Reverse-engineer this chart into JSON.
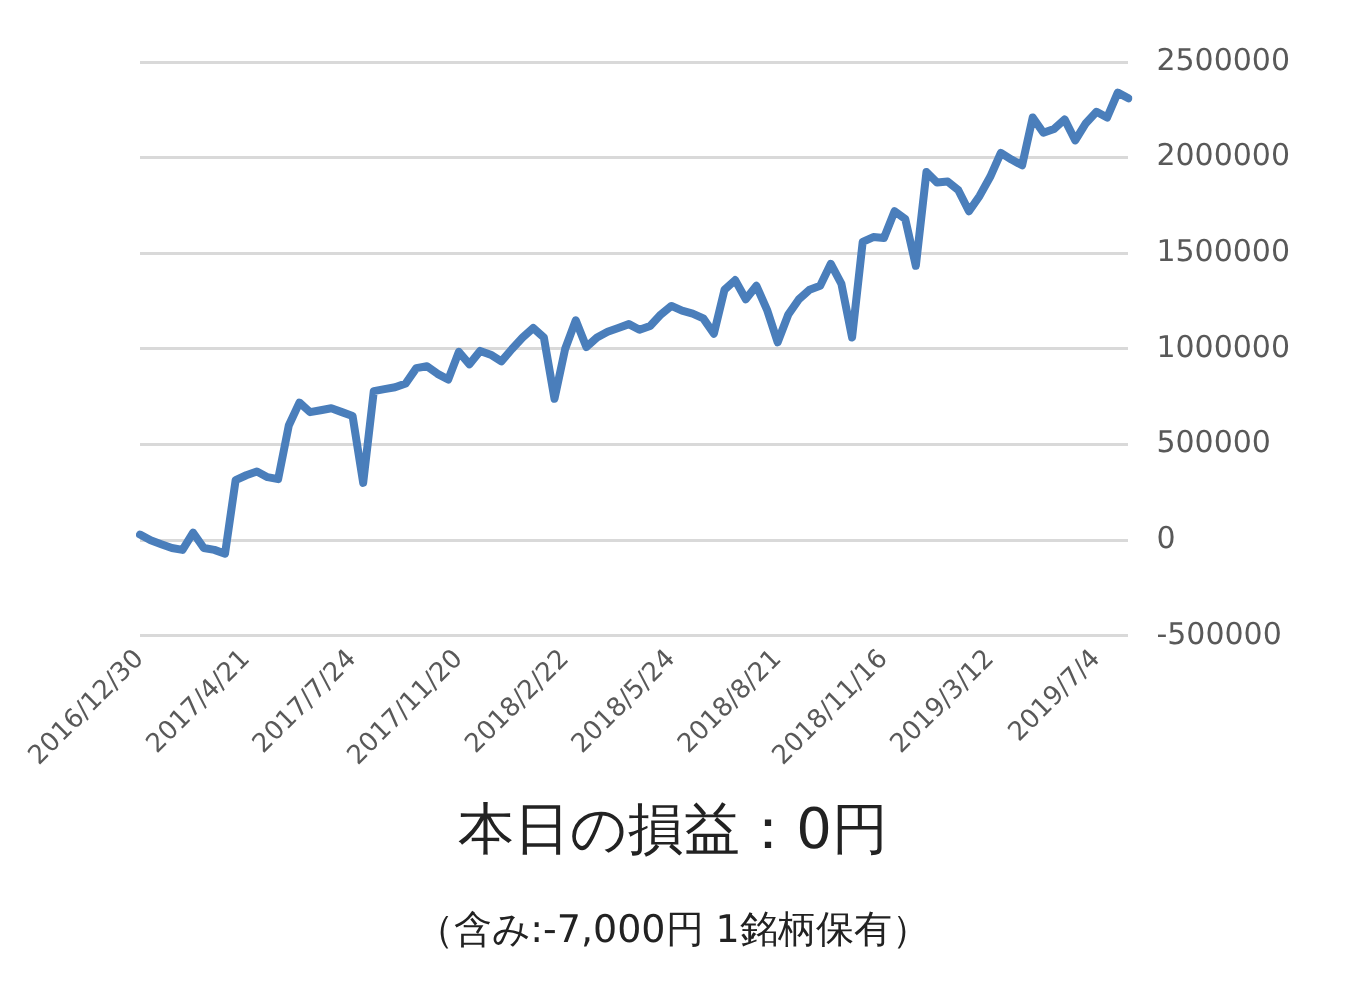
{
  "chart_data": {
    "type": "line",
    "title": "本日の損益：0円",
    "subtitle": "（含み:-7,000円  1銘柄保有）",
    "categories": [
      "2016/12/30",
      null,
      null,
      null,
      null,
      null,
      null,
      null,
      null,
      null,
      "2017/4/21",
      null,
      null,
      null,
      null,
      null,
      null,
      null,
      null,
      null,
      "2017/7/24",
      null,
      null,
      null,
      null,
      null,
      null,
      null,
      null,
      null,
      "2017/11/20",
      null,
      null,
      null,
      null,
      null,
      null,
      null,
      null,
      null,
      "2018/2/22",
      null,
      null,
      null,
      null,
      null,
      null,
      null,
      null,
      null,
      "2018/5/24",
      null,
      null,
      null,
      null,
      null,
      null,
      null,
      null,
      null,
      "2018/8/21",
      null,
      null,
      null,
      null,
      null,
      null,
      null,
      null,
      null,
      "2018/11/16",
      null,
      null,
      null,
      null,
      null,
      null,
      null,
      null,
      null,
      "2019/3/12",
      null,
      null,
      null,
      null,
      null,
      null,
      null,
      null,
      null,
      "2019/7/4",
      null,
      null,
      null
    ],
    "values": [
      30000,
      0,
      -20000,
      -40000,
      -50000,
      40000,
      -40000,
      -50000,
      -70000,
      315000,
      340000,
      360000,
      330000,
      320000,
      600000,
      720000,
      670000,
      680000,
      690000,
      670000,
      650000,
      300000,
      780000,
      790000,
      800000,
      820000,
      900000,
      910000,
      870000,
      840000,
      985000,
      920000,
      990000,
      970000,
      935000,
      1000000,
      1060000,
      1110000,
      1060000,
      740000,
      1000000,
      1150000,
      1010000,
      1060000,
      1090000,
      1110000,
      1130000,
      1100000,
      1120000,
      1180000,
      1225000,
      1200000,
      1185000,
      1160000,
      1080000,
      1310000,
      1360000,
      1260000,
      1330000,
      1205000,
      1035000,
      1180000,
      1260000,
      1310000,
      1330000,
      1445000,
      1340000,
      1060000,
      1560000,
      1585000,
      1580000,
      1720000,
      1680000,
      1435000,
      1925000,
      1870000,
      1875000,
      1830000,
      1720000,
      1800000,
      1900000,
      2025000,
      1990000,
      1960000,
      2210000,
      2130000,
      2150000,
      2200000,
      2090000,
      2180000,
      2240000,
      2210000,
      2340000,
      2310000
    ],
    "color": "#4a7ebb",
    "ylim": [
      -500000,
      2500000
    ],
    "yticks": [
      -500000,
      0,
      500000,
      1000000,
      1500000,
      2000000,
      2500000
    ],
    "grid": "y"
  }
}
